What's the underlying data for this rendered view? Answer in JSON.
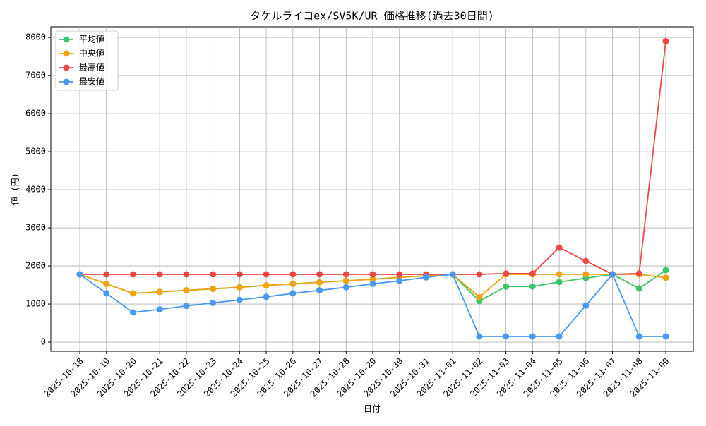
{
  "chart_data": {
    "type": "line",
    "title": "タケルライコex/SV5K/UR 価格推移(過去30日間)",
    "x_label": "日付",
    "y_label": "値 (円)",
    "categories": [
      "2025-10-18",
      "2025-10-19",
      "2025-10-20",
      "2025-10-21",
      "2025-10-22",
      "2025-10-23",
      "2025-10-24",
      "2025-10-25",
      "2025-10-26",
      "2025-10-27",
      "2025-10-28",
      "2025-10-29",
      "2025-10-30",
      "2025-10-31",
      "2025-11-01",
      "2025-11-02",
      "2025-11-03",
      "2025-11-04",
      "2025-11-05",
      "2025-11-06",
      "2025-11-07",
      "2025-11-08",
      "2025-11-09"
    ],
    "series": [
      {
        "name": "平均値",
        "color": "#3cc46a",
        "values": [
          1780,
          1530,
          1280,
          1320,
          1360,
          1400,
          1440,
          1490,
          1530,
          1570,
          1610,
          1650,
          1700,
          1740,
          1780,
          1080,
          1460,
          1460,
          1580,
          1680,
          1780,
          1410,
          1890
        ]
      },
      {
        "name": "中央値",
        "color": "#f0a30e",
        "values": [
          1780,
          1530,
          1280,
          1320,
          1360,
          1400,
          1440,
          1490,
          1530,
          1570,
          1610,
          1650,
          1700,
          1740,
          1780,
          1180,
          1780,
          1780,
          1780,
          1780,
          1780,
          1780,
          1690
        ]
      },
      {
        "name": "最高値",
        "color": "#ec4848",
        "values": [
          1780,
          1780,
          1780,
          1780,
          1780,
          1780,
          1780,
          1780,
          1780,
          1780,
          1780,
          1780,
          1780,
          1780,
          1780,
          1780,
          1800,
          1800,
          2480,
          2130,
          1780,
          1800,
          7900
        ]
      },
      {
        "name": "最安値",
        "color": "#4a97f0",
        "values": [
          1780,
          1280,
          780,
          860,
          950,
          1030,
          1110,
          1190,
          1280,
          1360,
          1440,
          1530,
          1610,
          1700,
          1780,
          150,
          150,
          150,
          150,
          960,
          1780,
          150,
          150
        ]
      }
    ],
    "ylim": [
      -240,
      8280
    ],
    "yticks": [
      0,
      1000,
      2000,
      3000,
      4000,
      5000,
      6000,
      7000,
      8000
    ],
    "grid": true,
    "legend": "upper-left"
  }
}
